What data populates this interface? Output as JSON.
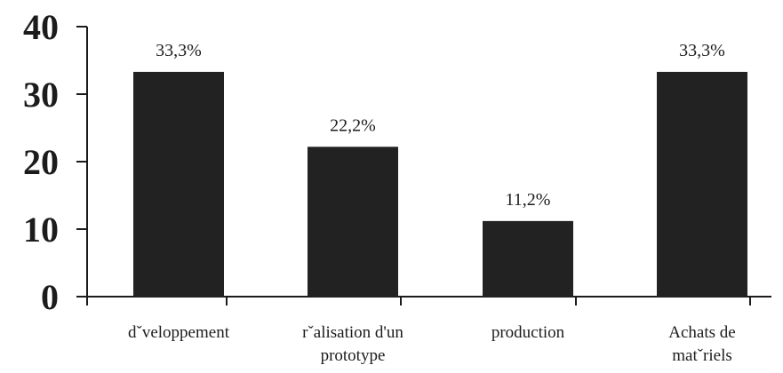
{
  "chart_data": {
    "type": "bar",
    "categories": [
      [
        "dˇveloppement"
      ],
      [
        "rˇalisation d'un",
        "prototype"
      ],
      [
        "production"
      ],
      [
        "Achats de",
        "matˇriels"
      ]
    ],
    "values": [
      33.3,
      22.2,
      11.2,
      33.3
    ],
    "data_labels": [
      "33,3%",
      "22,2%",
      "11,2%",
      "33,3%"
    ],
    "yticks": [
      0,
      10,
      20,
      30,
      40
    ],
    "ylim": [
      0,
      40
    ],
    "grid": false,
    "bar_color": "#222222"
  }
}
